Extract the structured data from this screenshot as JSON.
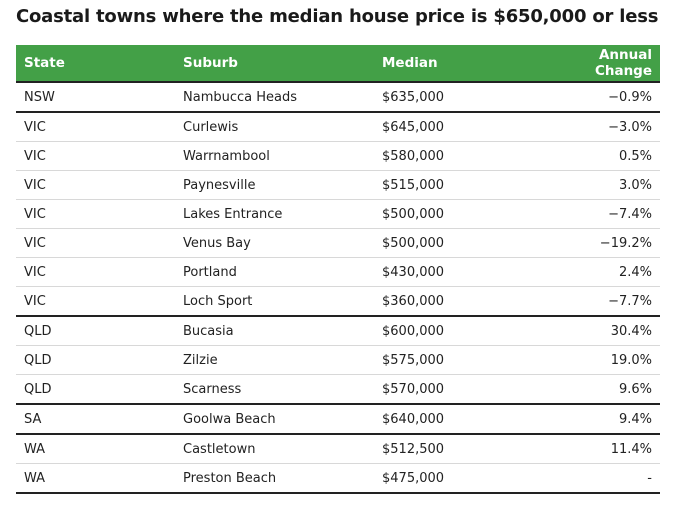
{
  "title": "Coastal towns where the median house price is $650,000 or less",
  "colors": {
    "header_bg": "#43a047",
    "header_text": "#ffffff",
    "group_divider": "#222222",
    "row_divider": "#d8d8d8"
  },
  "table": {
    "headers": [
      "State",
      "Suburb",
      "Median",
      "Annual Change"
    ],
    "rows": [
      {
        "state": "NSW",
        "suburb": "Nambucca Heads",
        "median": "$635,000",
        "change": "−0.9%",
        "group_end": true
      },
      {
        "state": "VIC",
        "suburb": "Curlewis",
        "median": "$645,000",
        "change": "−3.0%",
        "group_end": false
      },
      {
        "state": "VIC",
        "suburb": "Warrnambool",
        "median": "$580,000",
        "change": "0.5%",
        "group_end": false
      },
      {
        "state": "VIC",
        "suburb": "Paynesville",
        "median": "$515,000",
        "change": "3.0%",
        "group_end": false
      },
      {
        "state": "VIC",
        "suburb": "Lakes Entrance",
        "median": "$500,000",
        "change": "−7.4%",
        "group_end": false
      },
      {
        "state": "VIC",
        "suburb": "Venus Bay",
        "median": "$500,000",
        "change": "−19.2%",
        "group_end": false
      },
      {
        "state": "VIC",
        "suburb": "Portland",
        "median": "$430,000",
        "change": "2.4%",
        "group_end": false
      },
      {
        "state": "VIC",
        "suburb": "Loch Sport",
        "median": "$360,000",
        "change": "−7.7%",
        "group_end": true
      },
      {
        "state": "QLD",
        "suburb": "Bucasia",
        "median": "$600,000",
        "change": "30.4%",
        "group_end": false
      },
      {
        "state": "QLD",
        "suburb": "Zilzie",
        "median": "$575,000",
        "change": "19.0%",
        "group_end": false
      },
      {
        "state": "QLD",
        "suburb": "Scarness",
        "median": "$570,000",
        "change": "9.6%",
        "group_end": true
      },
      {
        "state": "SA",
        "suburb": "Goolwa Beach",
        "median": "$640,000",
        "change": "9.4%",
        "group_end": true
      },
      {
        "state": "WA",
        "suburb": "Castletown",
        "median": "$512,500",
        "change": "11.4%",
        "group_end": false
      },
      {
        "state": "WA",
        "suburb": "Preston Beach",
        "median": "$475,000",
        "change": "-",
        "group_end": true
      }
    ]
  }
}
